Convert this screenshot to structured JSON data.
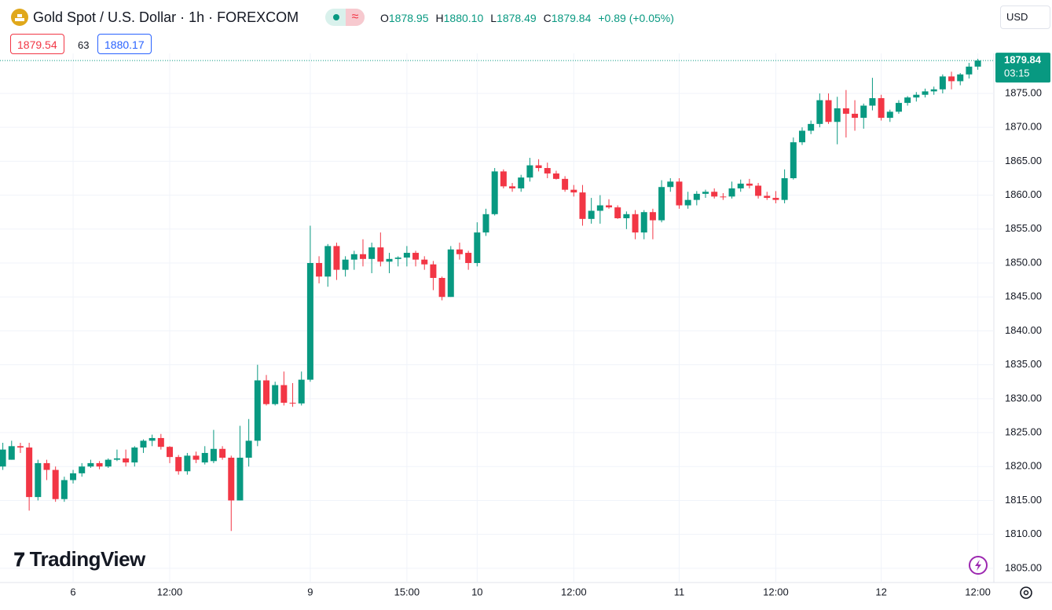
{
  "header": {
    "title": "Gold Spot / U.S. Dollar · 1h · FOREXCOM",
    "ohlc_labels": [
      "O",
      "H",
      "L",
      "C"
    ],
    "ohlc_values": [
      "1878.95",
      "1880.10",
      "1878.49",
      "1879.84"
    ],
    "change": "+0.89 (+0.05%)",
    "bid": "1879.54",
    "spread": "63",
    "ask": "1880.17",
    "currency": "USD",
    "brand": "TradingView"
  },
  "chart_data": {
    "type": "candlestick",
    "up_color": "#089981",
    "down_color": "#f23645",
    "grid": true,
    "categories": [
      null,
      null,
      null,
      null,
      null,
      null,
      null,
      null,
      "6",
      null,
      null,
      null,
      null,
      null,
      null,
      null,
      null,
      null,
      null,
      "12:00",
      null,
      null,
      null,
      null,
      null,
      null,
      null,
      null,
      null,
      null,
      null,
      null,
      null,
      null,
      null,
      "9",
      null,
      null,
      null,
      null,
      null,
      null,
      null,
      null,
      null,
      null,
      "15:00",
      null,
      null,
      null,
      null,
      null,
      null,
      null,
      "10",
      null,
      null,
      null,
      null,
      null,
      null,
      null,
      null,
      null,
      null,
      "12:00",
      null,
      null,
      null,
      null,
      null,
      null,
      null,
      null,
      null,
      null,
      null,
      "11",
      null,
      null,
      null,
      null,
      null,
      null,
      null,
      null,
      null,
      null,
      "12:00",
      null,
      null,
      null,
      null,
      null,
      null,
      null,
      null,
      null,
      null,
      null,
      "12",
      null,
      null,
      null,
      null,
      null,
      null,
      null,
      null,
      null,
      null,
      "12:00"
    ],
    "open": [
      1820,
      1821,
      1823,
      1822.8,
      1815.5,
      1820.5,
      1819.5,
      1815.2,
      1818,
      1819,
      1820,
      1820.5,
      1820,
      1821,
      1821.2,
      1820.6,
      1822.8,
      1823.8,
      1824.2,
      1822.9,
      1821.4,
      1819.3,
      1821.6,
      1820.6,
      1820.8,
      1822.6,
      1821.3,
      1815,
      1821.3,
      1823.8,
      1832.7,
      1829.2,
      1832,
      1829.4,
      1829.3,
      1832.8,
      1850,
      1848,
      1852.5,
      1849,
      1850.5,
      1851.3,
      1850.6,
      1852.3,
      1850.2,
      1850.6,
      1850.8,
      1851.5,
      1850.5,
      1849.8,
      1847.8,
      1845,
      1852,
      1851.5,
      1850,
      1854.5,
      1857.2,
      1863.5,
      1861.3,
      1861,
      1862.6,
      1864.4,
      1864,
      1863.2,
      1862.4,
      1860.8,
      1860.4,
      1856.5,
      1857.7,
      1858.5,
      1858.2,
      1856.6,
      1857.2,
      1854.5,
      1857.5,
      1856.3,
      1861.2,
      1862,
      1858.5,
      1859.3,
      1860.2,
      1860.5,
      1859.8,
      1859.8,
      1861,
      1861.7,
      1861.4,
      1859.9,
      1859.6,
      1859.3,
      1862.5,
      1867.8,
      1869.5,
      1870.5,
      1874,
      1870.8,
      1872.8,
      1872,
      1871.4,
      1873.2,
      1874.3,
      1871.4,
      1872.3,
      1873.6,
      1874.4,
      1874.8,
      1875.3,
      1875.6,
      1877.5,
      1876.8,
      1877.8,
      1878.95
    ],
    "high": [
      1823.5,
      1823.8,
      1823.5,
      1823.5,
      1821,
      1821,
      1820,
      1818.5,
      1819.5,
      1820.5,
      1821,
      1820.8,
      1821.2,
      1822.5,
      1822.5,
      1823,
      1824,
      1824.7,
      1824.8,
      1823,
      1821.7,
      1822,
      1822.2,
      1823,
      1825.4,
      1823,
      1821.6,
      1826,
      1827,
      1835,
      1833.5,
      1832.5,
      1834,
      1832.3,
      1834,
      1855.5,
      1851,
      1852.8,
      1853,
      1851,
      1851.8,
      1853.5,
      1853,
      1854.5,
      1851.5,
      1851,
      1852.5,
      1851.8,
      1851,
      1850.3,
      1848,
      1852.5,
      1853,
      1851.8,
      1856,
      1858,
      1864,
      1863.8,
      1861.8,
      1863,
      1865.5,
      1865.3,
      1864.8,
      1863.6,
      1862.8,
      1861.5,
      1861.5,
      1859.6,
      1860,
      1859.4,
      1858.5,
      1857.6,
      1857.8,
      1857.8,
      1858,
      1862.2,
      1862.5,
      1862.5,
      1860.5,
      1860.6,
      1860.8,
      1861,
      1860.3,
      1862,
      1862.3,
      1862.4,
      1861.8,
      1860.5,
      1860.6,
      1863.8,
      1868.5,
      1870,
      1871,
      1875,
      1875,
      1874.5,
      1875.5,
      1874,
      1873.5,
      1877.3,
      1874.8,
      1872.6,
      1874,
      1874.6,
      1875.2,
      1875.7,
      1876,
      1877.8,
      1878.2,
      1878,
      1879.5,
      1880.1
    ],
    "low": [
      1819.5,
      1821,
      1822,
      1813.5,
      1815,
      1818,
      1814.8,
      1814.8,
      1817.5,
      1818.5,
      1819.8,
      1819.6,
      1819.8,
      1820.8,
      1820,
      1820,
      1822,
      1823,
      1822.5,
      1820.5,
      1818.8,
      1818.8,
      1820.5,
      1820.3,
      1820.5,
      1821,
      1810.5,
      1815,
      1820,
      1823,
      1829,
      1829,
      1829,
      1828.8,
      1829,
      1832.5,
      1847,
      1846.5,
      1847.5,
      1848,
      1849,
      1849.5,
      1848.5,
      1849.5,
      1848.5,
      1849.5,
      1849.5,
      1849.5,
      1849,
      1846,
      1844.5,
      1845,
      1850.5,
      1849,
      1849.5,
      1854,
      1857,
      1861,
      1860.5,
      1860.5,
      1862,
      1863.5,
      1862.5,
      1862.3,
      1860.5,
      1859.8,
      1855.5,
      1855.8,
      1855.8,
      1858,
      1856.5,
      1855,
      1853.5,
      1853.5,
      1853.5,
      1856,
      1860.5,
      1858,
      1858,
      1858.5,
      1859.6,
      1859.5,
      1859.3,
      1859.5,
      1860.5,
      1861,
      1859.5,
      1859.3,
      1858.8,
      1858.8,
      1862.3,
      1867.4,
      1869,
      1870,
      1870.5,
      1867.5,
      1868.5,
      1869.5,
      1869.8,
      1872.5,
      1871,
      1870.8,
      1872,
      1873.2,
      1873.8,
      1874.4,
      1874.8,
      1875,
      1875.6,
      1876.2,
      1877.2,
      1878.49
    ],
    "close": [
      1822.5,
      1823,
      1822.8,
      1815.5,
      1820.5,
      1819.5,
      1815.2,
      1818,
      1819,
      1820,
      1820.5,
      1820,
      1821,
      1821.2,
      1820.6,
      1822.8,
      1823.8,
      1824.2,
      1822.9,
      1821.4,
      1819.3,
      1821.6,
      1821,
      1822,
      1822.6,
      1821.3,
      1815,
      1821.3,
      1823.8,
      1832.7,
      1829.2,
      1832,
      1829.4,
      1829.3,
      1832.8,
      1850,
      1848,
      1852.5,
      1849,
      1850.5,
      1851.3,
      1850.6,
      1852.3,
      1850.2,
      1850.6,
      1850.8,
      1851.5,
      1850.5,
      1849.8,
      1847.8,
      1845,
      1852,
      1851.3,
      1850,
      1854.5,
      1857.2,
      1863.5,
      1861.3,
      1861,
      1862.6,
      1864.4,
      1864,
      1863.2,
      1862.4,
      1860.8,
      1860.4,
      1856.5,
      1857.7,
      1858.5,
      1858.2,
      1856.6,
      1857.2,
      1854.5,
      1857.5,
      1856.3,
      1861.2,
      1862,
      1858.5,
      1859.3,
      1860.2,
      1860.5,
      1859.8,
      1859.7,
      1861,
      1861.7,
      1861.4,
      1859.9,
      1859.6,
      1859.3,
      1862.5,
      1867.8,
      1869.5,
      1870.5,
      1874,
      1870.8,
      1872.8,
      1872,
      1871.4,
      1873.2,
      1874.3,
      1871.4,
      1872.3,
      1873.6,
      1874.4,
      1874.8,
      1875.3,
      1875.6,
      1877.5,
      1876.8,
      1877.8,
      1878.95,
      1879.84
    ],
    "last_price": 1879.84,
    "countdown": "03:15",
    "ylim": [
      1802.9,
      1880.9
    ],
    "yticks": [
      {
        "value": 1805,
        "label": "1805.00"
      },
      {
        "value": 1810,
        "label": "1810.00"
      },
      {
        "value": 1815,
        "label": "1815.00"
      },
      {
        "value": 1820,
        "label": "1820.00"
      },
      {
        "value": 1825,
        "label": "1825.00"
      },
      {
        "value": 1830,
        "label": "1830.00"
      },
      {
        "value": 1835,
        "label": "1835.00"
      },
      {
        "value": 1840,
        "label": "1840.00"
      },
      {
        "value": 1845,
        "label": "1845.00"
      },
      {
        "value": 1850,
        "label": "1850.00"
      },
      {
        "value": 1855,
        "label": "1855.00"
      },
      {
        "value": 1860,
        "label": "1860.00"
      },
      {
        "value": 1865,
        "label": "1865.00"
      },
      {
        "value": 1870,
        "label": "1870.00"
      },
      {
        "value": 1875,
        "label": "1875.00"
      }
    ]
  }
}
